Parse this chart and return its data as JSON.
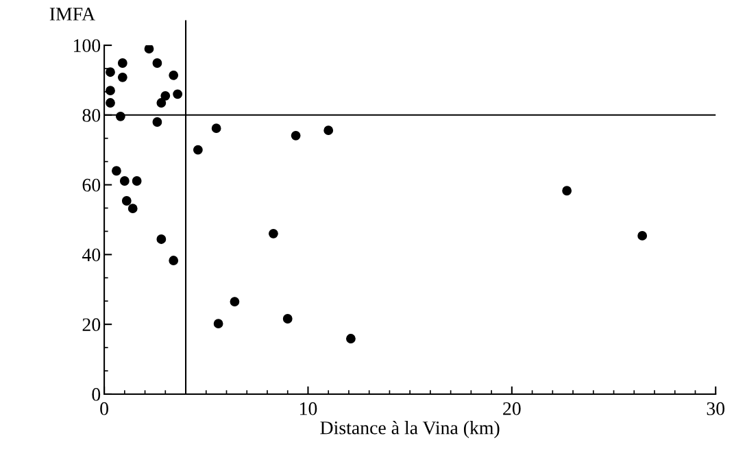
{
  "chart_data": {
    "type": "scatter",
    "ylabel": "IMFA",
    "xlabel": "Distance à la Vina (km)",
    "x": [
      0.3,
      0.3,
      0.3,
      0.9,
      0.9,
      0.8,
      2.2,
      2.6,
      3.4,
      2.8,
      3.0,
      3.6,
      2.6,
      4.6,
      5.5,
      9.4,
      11.0,
      0.6,
      1.0,
      1.6,
      1.1,
      1.4,
      2.8,
      3.4,
      8.3,
      5.6,
      6.4,
      9.0,
      12.1,
      22.7,
      26.4
    ],
    "series": [
      {
        "color": "#000000",
        "values": [
          92.3,
          87.0,
          83.5,
          94.9,
          90.8,
          79.6,
          99.0,
          94.9,
          91.4,
          83.5,
          85.5,
          86.0,
          78.0,
          70.0,
          76.2,
          74.1,
          75.6,
          64.0,
          61.1,
          61.1,
          55.4,
          53.2,
          44.4,
          38.3,
          46.0,
          20.2,
          26.5,
          21.6,
          15.9,
          58.3,
          45.4
        ]
      }
    ],
    "marker": "circle",
    "xlim": [
      0,
      30
    ],
    "xticks": [
      0,
      10,
      20,
      30
    ],
    "ylim": [
      0,
      100
    ],
    "yticks": [
      0,
      20,
      40,
      60,
      80,
      100
    ],
    "ref_lines": [
      {
        "axis": "x",
        "value": 4,
        "color": "#000000"
      },
      {
        "axis": "y",
        "value": 80,
        "color": "#000000"
      }
    ],
    "grid": false,
    "legend": false
  }
}
